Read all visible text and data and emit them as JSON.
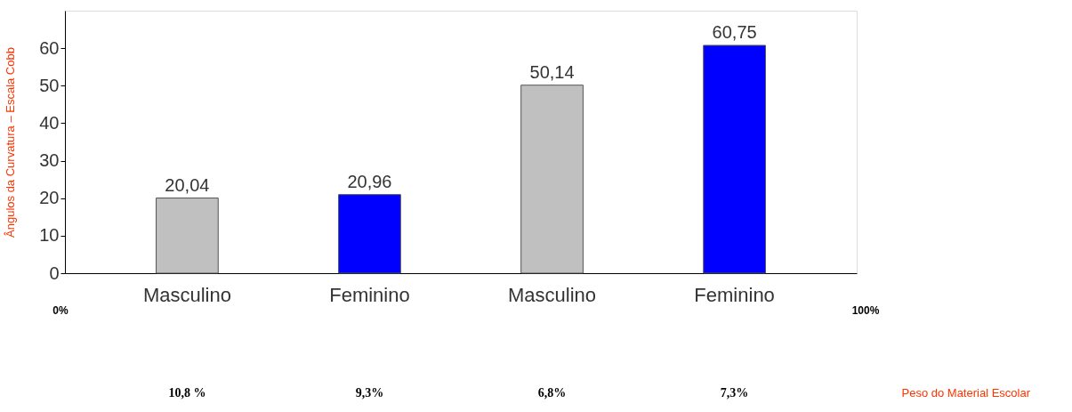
{
  "chart_data": {
    "type": "bar",
    "categories": [
      "Masculino",
      "Feminino",
      "Masculino",
      "Feminino"
    ],
    "values": [
      20.04,
      20.96,
      50.14,
      60.75
    ],
    "colors": [
      "#c0c0c0",
      "#0000ff",
      "#c0c0c0",
      "#0000ff"
    ],
    "value_labels": [
      "20,04",
      "20,96",
      "50,14",
      "60,75"
    ],
    "ylabel": "Ângulos da Curvatura – Escala Cobb",
    "ylim": [
      0,
      70
    ],
    "yticks": [
      0,
      10,
      20,
      30,
      40,
      50,
      60
    ],
    "annotations": [
      "0%",
      "100%",
      "10,8 %",
      "9,3%",
      "6,8%",
      "7,3%",
      "Peso do Material Escolar"
    ],
    "grid": false
  }
}
